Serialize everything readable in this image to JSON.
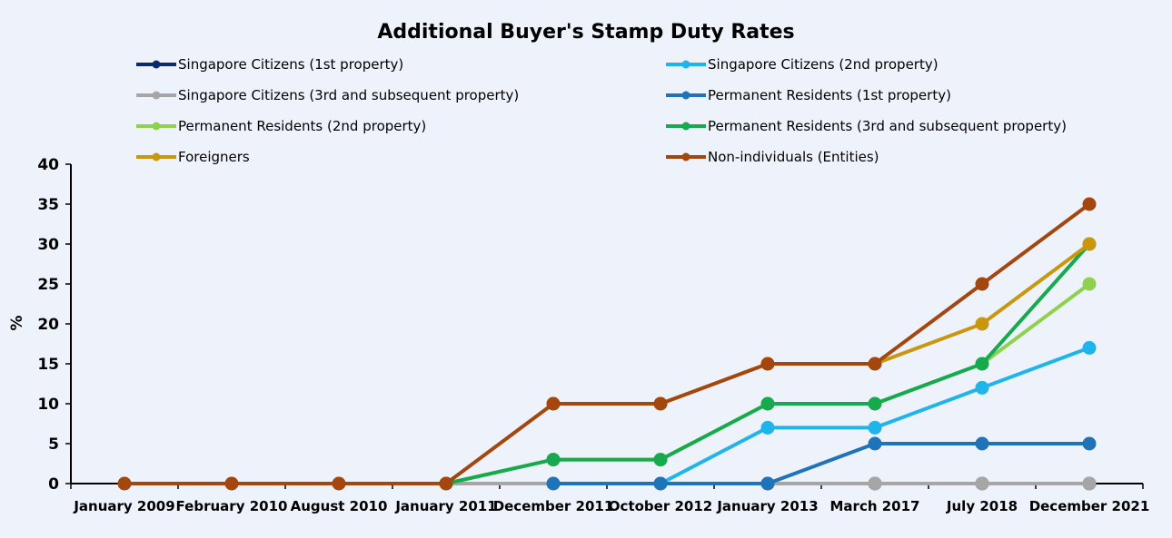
{
  "chart_data": {
    "type": "line",
    "title": "Additional Buyer's Stamp Duty Rates",
    "xlabel": "",
    "ylabel": "%",
    "ylim": [
      0,
      40
    ],
    "yticks": [
      0,
      5,
      10,
      15,
      20,
      25,
      30,
      35,
      40
    ],
    "grid": false,
    "legend_position": "top",
    "categories": [
      "January 2009",
      "February 2010",
      "August 2010",
      "January 2011",
      "December 2011",
      "October 2012",
      "January 2013",
      "March 2017",
      "July 2018",
      "December 2021"
    ],
    "series": [
      {
        "name": "Singapore Citizens (1st property)",
        "color": "#0b2a6b",
        "start": 6,
        "values": [
          null,
          null,
          null,
          null,
          null,
          null,
          0,
          0,
          0,
          0
        ]
      },
      {
        "name": "Singapore Citizens (2nd property)",
        "color": "#1fb4ea",
        "start": 5,
        "values": [
          null,
          null,
          null,
          null,
          null,
          0,
          7,
          7,
          12,
          17
        ]
      },
      {
        "name": "Singapore Citizens (3rd and subsequent property)",
        "color": "#a6a6a6",
        "start": 0,
        "values": [
          0,
          0,
          0,
          0,
          0,
          0,
          0,
          0,
          0,
          0
        ]
      },
      {
        "name": "Permanent Residents (1st property)",
        "color": "#1f73b8",
        "start": 4,
        "values": [
          null,
          null,
          null,
          null,
          0,
          0,
          0,
          5,
          5,
          5
        ]
      },
      {
        "name": "Permanent Residents (2nd property)",
        "color": "#8fd14f",
        "start": 3,
        "values": [
          null,
          null,
          null,
          0,
          3,
          3,
          10,
          10,
          15,
          25
        ]
      },
      {
        "name": "Permanent Residents (3rd and subsequent property)",
        "color": "#17a94d",
        "start": 3,
        "values": [
          null,
          null,
          null,
          0,
          3,
          3,
          10,
          10,
          15,
          30
        ]
      },
      {
        "name": "Foreigners",
        "color": "#c9970f",
        "start": 4,
        "values": [
          null,
          null,
          null,
          null,
          10,
          10,
          15,
          15,
          20,
          30
        ]
      },
      {
        "name": "Non-individuals (Entities)",
        "color": "#a3470f",
        "start": 0,
        "values": [
          0,
          0,
          0,
          0,
          10,
          10,
          15,
          15,
          25,
          35
        ]
      }
    ]
  }
}
